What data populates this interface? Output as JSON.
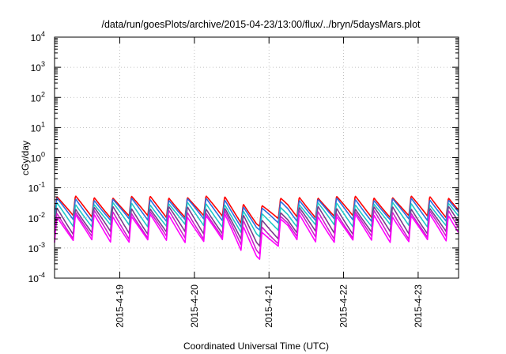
{
  "chart_data": {
    "type": "line",
    "title": "/data/run/goesPlots/archive/2015-04-23/13:00/flux/../bryn/5daysMars.plot",
    "xlabel": "Coordinated Universal Time (UTC)",
    "ylabel": "cGy/day",
    "x_axis": {
      "kind": "date",
      "range": [
        "2015-04-18T03:00:00Z",
        "2015-04-23T13:00:00Z"
      ],
      "ticks": [
        "2015-4-19",
        "2015-4-20",
        "2015-4-21",
        "2015-4-22",
        "2015-4-23"
      ]
    },
    "y_axis": {
      "scale": "log",
      "range": [
        0.0001,
        10000
      ],
      "ticks": [
        {
          "value": 0.0001,
          "mant": "10",
          "exp": "-4"
        },
        {
          "value": 0.001,
          "mant": "10",
          "exp": "-3"
        },
        {
          "value": 0.01,
          "mant": "10",
          "exp": "-2"
        },
        {
          "value": 0.1,
          "mant": "10",
          "exp": "-1"
        },
        {
          "value": 1,
          "mant": "10",
          "exp": "0"
        },
        {
          "value": 10,
          "mant": "10",
          "exp": "1"
        },
        {
          "value": 100,
          "mant": "10",
          "exp": "2"
        },
        {
          "value": 1000,
          "mant": "10",
          "exp": "3"
        },
        {
          "value": 10000,
          "mant": "10",
          "exp": "4"
        }
      ]
    },
    "grid": true,
    "legend": "none",
    "pattern": {
      "description": "periodic sawtooth, sharp rise then decay",
      "cycles_per_day": 4,
      "dip_time": "2015-04-20T20:00:00Z"
    },
    "series": [
      {
        "color": "#ff0000",
        "peak": 0.05,
        "trough": 0.011
      },
      {
        "color": "#2d6ee0",
        "peak": 0.042,
        "trough": 0.0085
      },
      {
        "color": "#1fc8c8",
        "peak": 0.03,
        "trough": 0.0055
      },
      {
        "color": "#7a3b8c",
        "peak": 0.022,
        "trough": 0.0032
      },
      {
        "color": "#cc1fcc",
        "peak": 0.016,
        "trough": 0.0022
      },
      {
        "color": "#ff00ff",
        "peak": 0.012,
        "trough": 0.0017
      }
    ]
  }
}
